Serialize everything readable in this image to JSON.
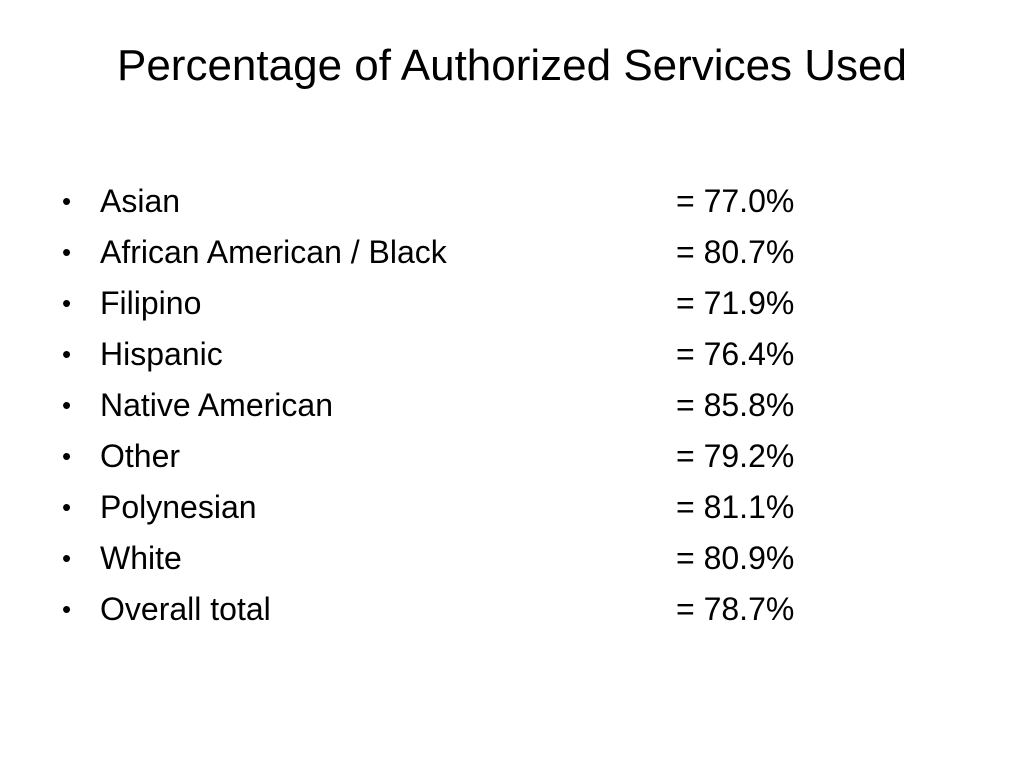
{
  "slide": {
    "title": "Percentage of Authorized Services Used",
    "bullet_symbol": "•",
    "items": [
      {
        "label": "Asian",
        "value": "= 77.0%"
      },
      {
        "label": "African American / Black",
        "value": "= 80.7%"
      },
      {
        "label": "Filipino",
        "value": "= 71.9%"
      },
      {
        "label": "Hispanic",
        "value": "= 76.4%"
      },
      {
        "label": "Native American",
        "value": "= 85.8%"
      },
      {
        "label": "Other",
        "value": "= 79.2%"
      },
      {
        "label": "Polynesian",
        "value": "= 81.1%"
      },
      {
        "label": "White",
        "value": "= 80.9%"
      },
      {
        "label": "Overall total",
        "value": "= 78.7%"
      }
    ]
  }
}
